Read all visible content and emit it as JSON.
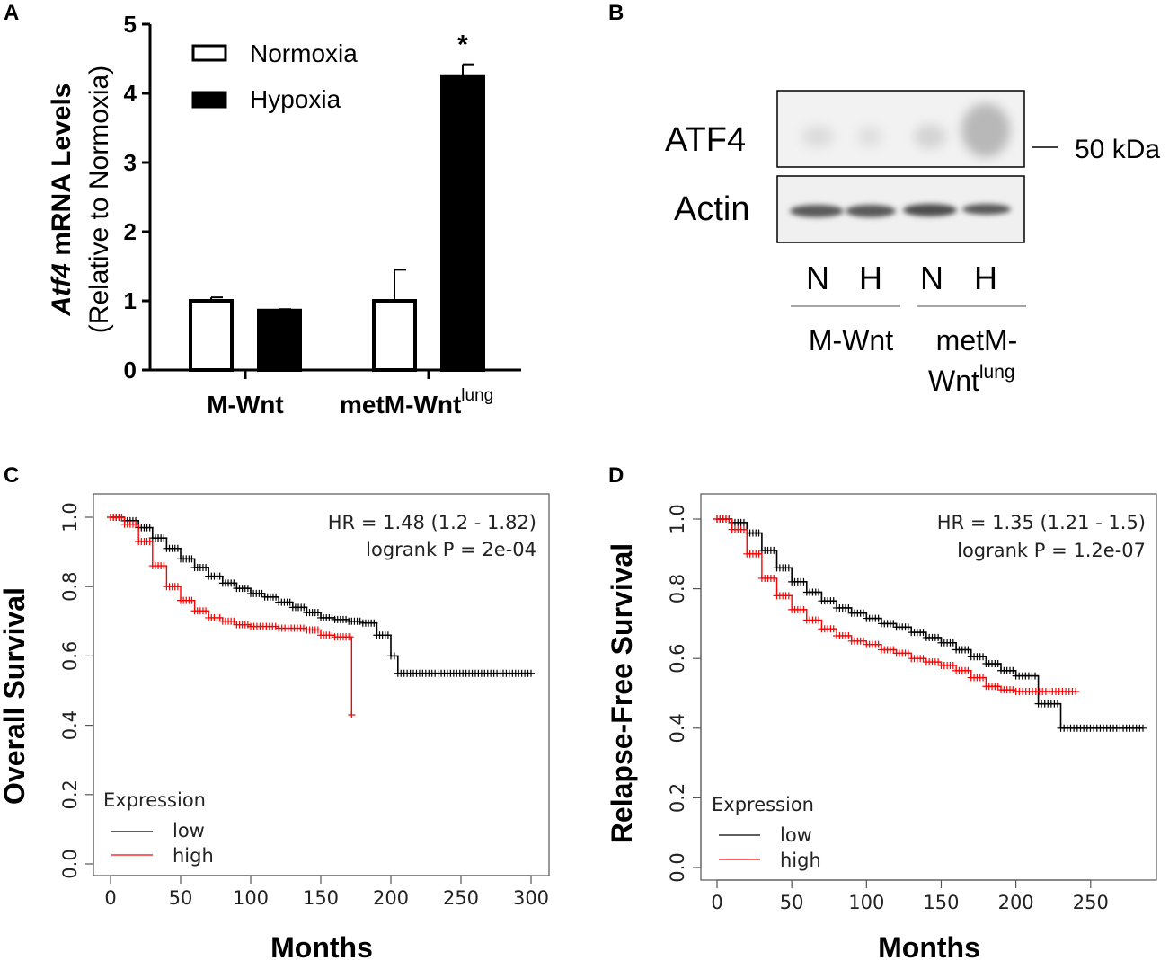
{
  "panels": {
    "A": "A",
    "B": "B",
    "C": "C",
    "D": "D"
  },
  "colors": {
    "black": "#000000",
    "red": "#ff0000",
    "gray": "#555555"
  },
  "chart_data": [
    {
      "id": "A",
      "type": "bar",
      "ylabel_italic": "Atf4",
      "ylabel_rest": " mRNA Levels",
      "ylabel_sub": "(Relative to Normoxia)",
      "ylim": [
        0,
        5
      ],
      "yticks": [
        0,
        1,
        2,
        3,
        4,
        5
      ],
      "categories": [
        "M-Wnt",
        "metM-Wnt"
      ],
      "category_superscripts": [
        "",
        "lung"
      ],
      "series": [
        {
          "name": "Normoxia",
          "fill": "#ffffff",
          "values": [
            1.0,
            1.0
          ],
          "errors": [
            0.05,
            0.45
          ]
        },
        {
          "name": "Hypoxia",
          "fill": "#000000",
          "values": [
            0.86,
            4.25
          ],
          "errors": [
            0.02,
            0.17
          ]
        }
      ],
      "annotation": "*"
    },
    {
      "id": "C",
      "type": "line",
      "ylabel": "Overall Survival",
      "xlabel": "Months",
      "xlim": [
        0,
        300
      ],
      "ylim": [
        0,
        1
      ],
      "xticks": [
        0,
        50,
        100,
        150,
        200,
        250,
        300
      ],
      "yticks": [
        "0.0",
        "0.2",
        "0.4",
        "0.6",
        "0.8",
        "1.0"
      ],
      "hr_text": "HR = 1.48 (1.2 - 1.82)",
      "p_text": "logrank P = 2e-04",
      "legend_title": "Expression",
      "series": [
        {
          "name": "low",
          "color": "#000000",
          "x": [
            0,
            10,
            20,
            30,
            40,
            50,
            60,
            70,
            80,
            90,
            100,
            110,
            120,
            130,
            140,
            150,
            160,
            170,
            180,
            190,
            200,
            205,
            300
          ],
          "y": [
            1.0,
            0.99,
            0.97,
            0.94,
            0.91,
            0.88,
            0.855,
            0.83,
            0.81,
            0.795,
            0.78,
            0.77,
            0.755,
            0.74,
            0.725,
            0.71,
            0.705,
            0.7,
            0.695,
            0.66,
            0.6,
            0.55,
            0.55
          ]
        },
        {
          "name": "high",
          "color": "#ff0000",
          "x": [
            0,
            10,
            20,
            30,
            40,
            50,
            60,
            70,
            80,
            90,
            100,
            120,
            140,
            150,
            160,
            170,
            172
          ],
          "y": [
            1.0,
            0.98,
            0.93,
            0.86,
            0.8,
            0.76,
            0.73,
            0.71,
            0.7,
            0.69,
            0.685,
            0.68,
            0.675,
            0.66,
            0.655,
            0.655,
            0.43
          ]
        }
      ]
    },
    {
      "id": "D",
      "type": "line",
      "ylabel": "Relapse-Free Survival",
      "xlabel": "Months",
      "xlim": [
        0,
        285
      ],
      "ylim": [
        0,
        1
      ],
      "xticks": [
        0,
        50,
        100,
        150,
        200,
        250
      ],
      "yticks": [
        "0.0",
        "0.2",
        "0.4",
        "0.6",
        "0.8",
        "1.0"
      ],
      "hr_text": "HR = 1.35 (1.21 - 1.5)",
      "p_text": "logrank P = 1.2e-07",
      "legend_title": "Expression",
      "series": [
        {
          "name": "low",
          "color": "#000000",
          "x": [
            0,
            10,
            20,
            30,
            40,
            50,
            60,
            70,
            80,
            90,
            100,
            110,
            120,
            130,
            140,
            150,
            160,
            170,
            180,
            190,
            200,
            215,
            230,
            285
          ],
          "y": [
            1.0,
            0.99,
            0.96,
            0.91,
            0.86,
            0.82,
            0.79,
            0.765,
            0.745,
            0.73,
            0.715,
            0.7,
            0.69,
            0.675,
            0.66,
            0.645,
            0.625,
            0.605,
            0.585,
            0.565,
            0.55,
            0.47,
            0.4,
            0.4
          ]
        },
        {
          "name": "high",
          "color": "#ff0000",
          "x": [
            0,
            10,
            20,
            30,
            40,
            50,
            60,
            70,
            80,
            90,
            100,
            110,
            120,
            130,
            140,
            150,
            160,
            170,
            180,
            190,
            200,
            240
          ],
          "y": [
            1.0,
            0.97,
            0.9,
            0.83,
            0.78,
            0.74,
            0.71,
            0.685,
            0.665,
            0.65,
            0.64,
            0.625,
            0.615,
            0.6,
            0.59,
            0.58,
            0.565,
            0.545,
            0.52,
            0.51,
            0.505,
            0.505
          ]
        }
      ]
    }
  ],
  "blot": {
    "rows": [
      "ATF4",
      "Actin"
    ],
    "marker": "50 kDa",
    "lanes": [
      "N",
      "H",
      "N",
      "H"
    ],
    "groups": [
      "M-Wnt",
      "metM-"
    ],
    "group2_line2": "Wnt",
    "group2_sup": "lung"
  }
}
